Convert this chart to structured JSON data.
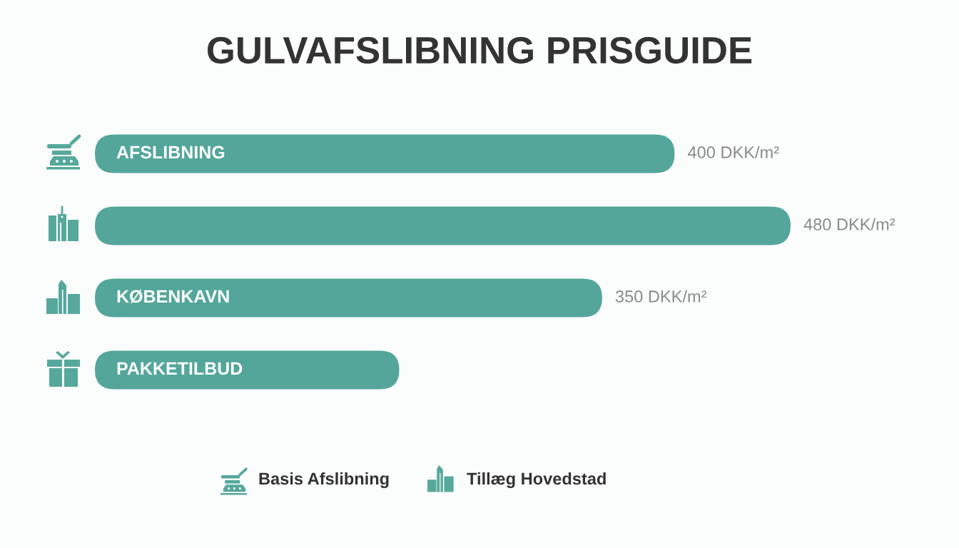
{
  "chart_data": {
    "type": "bar",
    "orientation": "horizontal",
    "title": "GULVAFSLIBNING PRISGUIDE",
    "categories": [
      "AFSLIBNING",
      null,
      "KØBENKAVN",
      "PAKKETILBUD"
    ],
    "values": [
      400,
      480,
      350,
      210
    ],
    "color": "#54a69b",
    "value_labels": [
      "400 DKK/m²",
      "480 DKK/m²",
      "350 DKK/m²",
      null
    ],
    "annotations": [
      "Basis Afslibning",
      "Tillæg Hovedstad"
    ]
  }
}
